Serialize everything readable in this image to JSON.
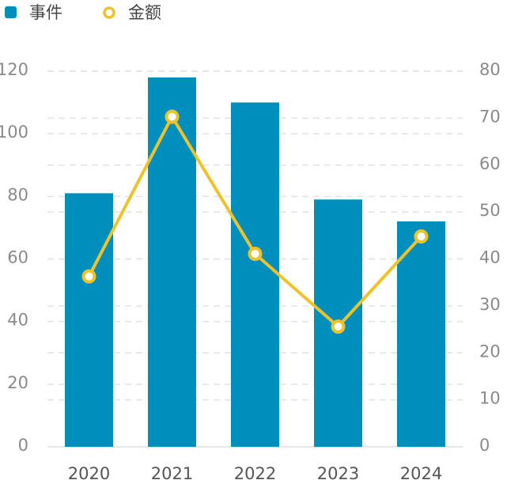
{
  "chart_data": {
    "type": "bar+line",
    "categories": [
      "2020",
      "2021",
      "2022",
      "2023",
      "2024"
    ],
    "series": [
      {
        "name": "事件",
        "type": "bar",
        "axis": "left",
        "values": [
          81,
          118,
          110,
          79,
          72
        ],
        "color": "#008fbd"
      },
      {
        "name": "金额",
        "type": "line",
        "axis": "right",
        "values": [
          36.3,
          70.3,
          41.1,
          25.6,
          44.8
        ],
        "color": "#eec22b"
      }
    ],
    "y_left": {
      "range": [
        0,
        120
      ],
      "ticks": [
        "0",
        "20",
        "40",
        "60",
        "80",
        "100",
        "120"
      ]
    },
    "y_right": {
      "range": [
        0,
        80
      ],
      "ticks": [
        "0",
        "10",
        "20",
        "30",
        "40",
        "50",
        "60",
        "70",
        "80"
      ]
    },
    "grid": true,
    "legend_position": "top-left",
    "axis_text_color": "#8a8a8a",
    "grid_color": "#e2e2e2"
  }
}
